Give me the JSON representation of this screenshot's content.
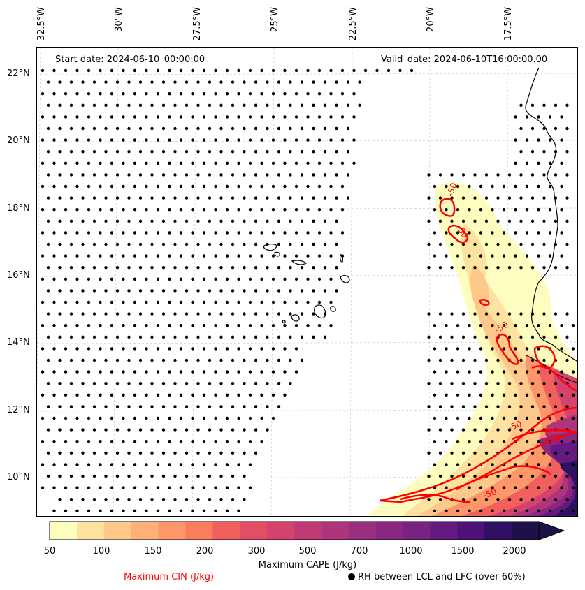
{
  "map": {
    "start_date_label": "Start date: 2024-06-10_00:00:00",
    "valid_date_label": "Valid_date: 2024-06-10T16:00:00.00",
    "longitude_labels": [
      "32.5°W",
      "30°W",
      "27.5°W",
      "25°W",
      "22.5°W",
      "20°W",
      "17.5°W"
    ],
    "latitude_labels": [
      "22°N",
      "20°N",
      "18°N",
      "16°N",
      "14°N",
      "12°N",
      "10°N"
    ],
    "cin_contour_labels": [
      "-50",
      "-50",
      "-50",
      "-50",
      "-100",
      "-50"
    ],
    "colors": {
      "cin_contour": "#ff0000",
      "coastline": "#000000",
      "gridline": "#cccccc",
      "rh_dot": "#000000"
    }
  },
  "colorbar": {
    "tick_labels": [
      "50",
      "100",
      "150",
      "200",
      "300",
      "500",
      "700",
      "1000",
      "1500",
      "2000"
    ],
    "colors": [
      "#fcfdbf",
      "#fde2a0",
      "#fec88a",
      "#feb078",
      "#fd9668",
      "#fa7e5e",
      "#f1605d",
      "#e24e64",
      "#d3436e",
      "#c03a76",
      "#ae347b",
      "#9c2e7f",
      "#8a2881",
      "#782281",
      "#641a80",
      "#4f127b",
      "#2f1163",
      "#1d1147"
    ],
    "label": "Maximum CAPE (J/kg)"
  },
  "legend": {
    "cin_label": "Maximum CIN (J/kg)",
    "rh_label": "RH between LCL and LFC (over 60%)"
  }
}
